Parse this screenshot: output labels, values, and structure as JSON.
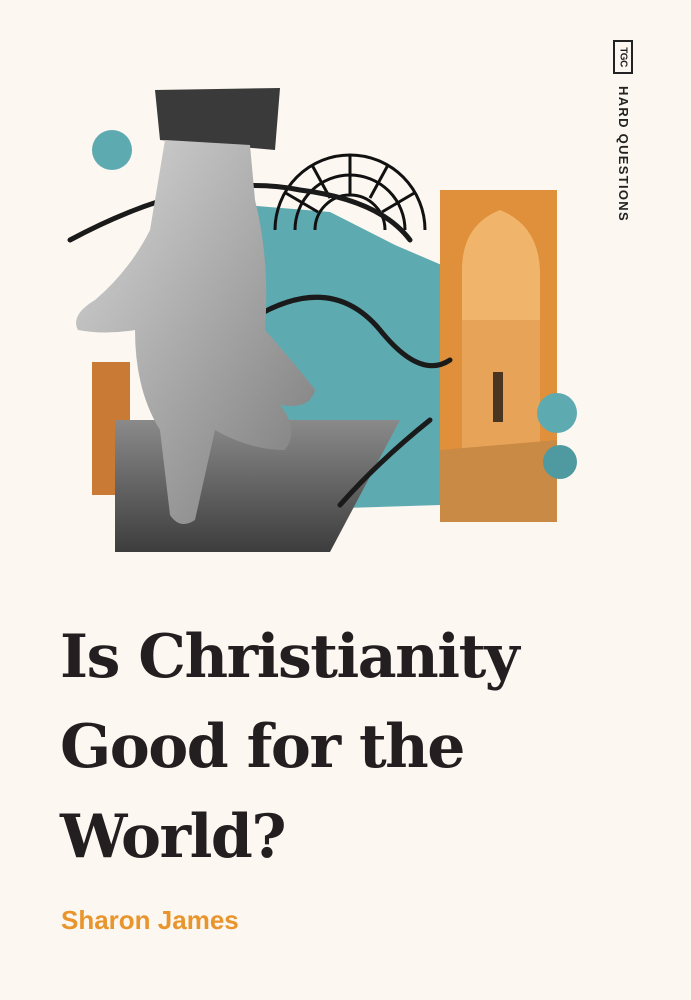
{
  "brand": {
    "logo_text": "TGC",
    "series": "HARD QUESTIONS"
  },
  "title_lines": [
    "Is Christianity",
    "Good for the",
    "World?"
  ],
  "author": "Sharon James",
  "colors": {
    "background": "#fcf7f0",
    "teal": "#5eaab1",
    "orange": "#e0903a",
    "author": "#e8952e",
    "title": "#231f20"
  }
}
